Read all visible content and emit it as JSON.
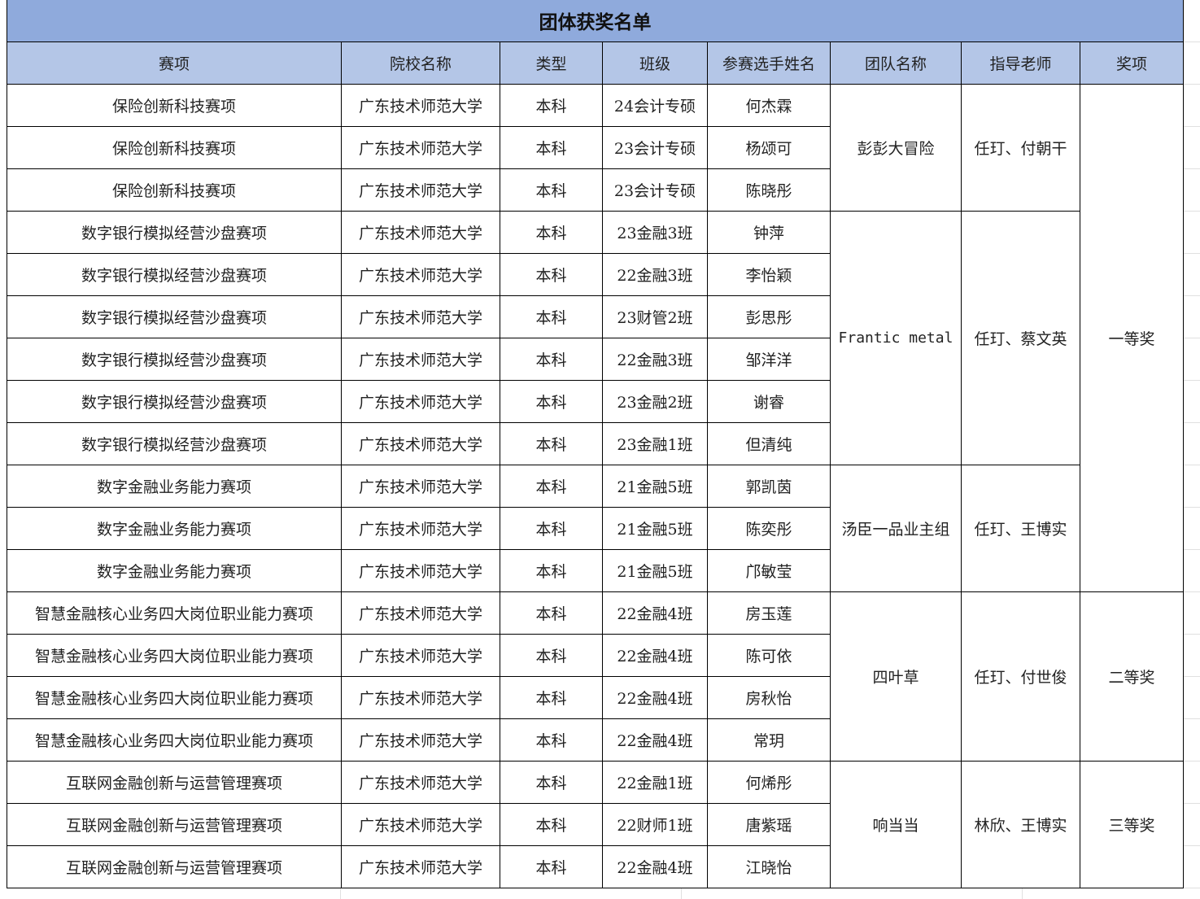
{
  "title": "团体获奖名单",
  "headers": [
    "赛项",
    "院校名称",
    "类型",
    "班级",
    "参赛选手姓名",
    "团队名称",
    "指导老师",
    "奖项"
  ],
  "rows": [
    {
      "event": "保险创新科技赛项",
      "school": "广东技术师范大学",
      "type": "本科",
      "class": "24会计专硕",
      "name": "何杰霖"
    },
    {
      "event": "保险创新科技赛项",
      "school": "广东技术师范大学",
      "type": "本科",
      "class": "23会计专硕",
      "name": "杨颂可"
    },
    {
      "event": "保险创新科技赛项",
      "school": "广东技术师范大学",
      "type": "本科",
      "class": "23会计专硕",
      "name": "陈晓彤"
    },
    {
      "event": "数字银行模拟经营沙盘赛项",
      "school": "广东技术师范大学",
      "type": "本科",
      "class": "23金融3班",
      "name": "钟萍"
    },
    {
      "event": "数字银行模拟经营沙盘赛项",
      "school": "广东技术师范大学",
      "type": "本科",
      "class": "22金融3班",
      "name": "李怡颖"
    },
    {
      "event": "数字银行模拟经营沙盘赛项",
      "school": "广东技术师范大学",
      "type": "本科",
      "class": "23财管2班",
      "name": "彭思彤"
    },
    {
      "event": "数字银行模拟经营沙盘赛项",
      "school": "广东技术师范大学",
      "type": "本科",
      "class": "22金融3班",
      "name": "邹洋洋"
    },
    {
      "event": "数字银行模拟经营沙盘赛项",
      "school": "广东技术师范大学",
      "type": "本科",
      "class": "23金融2班",
      "name": "谢睿"
    },
    {
      "event": "数字银行模拟经营沙盘赛项",
      "school": "广东技术师范大学",
      "type": "本科",
      "class": "23金融1班",
      "name": "但清纯"
    },
    {
      "event": "数字金融业务能力赛项",
      "school": "广东技术师范大学",
      "type": "本科",
      "class": "21金融5班",
      "name": "郭凯茵"
    },
    {
      "event": "数字金融业务能力赛项",
      "school": "广东技术师范大学",
      "type": "本科",
      "class": "21金融5班",
      "name": "陈奕彤"
    },
    {
      "event": "数字金融业务能力赛项",
      "school": "广东技术师范大学",
      "type": "本科",
      "class": "21金融5班",
      "name": "邝敏莹"
    },
    {
      "event": "智慧金融核心业务四大岗位职业能力赛项",
      "school": "广东技术师范大学",
      "type": "本科",
      "class": "22金融4班",
      "name": "房玉莲"
    },
    {
      "event": "智慧金融核心业务四大岗位职业能力赛项",
      "school": "广东技术师范大学",
      "type": "本科",
      "class": "22金融4班",
      "name": "陈可依"
    },
    {
      "event": "智慧金融核心业务四大岗位职业能力赛项",
      "school": "广东技术师范大学",
      "type": "本科",
      "class": "22金融4班",
      "name": "房秋怡"
    },
    {
      "event": "智慧金融核心业务四大岗位职业能力赛项",
      "school": "广东技术师范大学",
      "type": "本科",
      "class": "22金融4班",
      "name": "常玥"
    },
    {
      "event": "互联网金融创新与运营管理赛项",
      "school": "广东技术师范大学",
      "type": "本科",
      "class": "22金融1班",
      "name": "何烯彤"
    },
    {
      "event": "互联网金融创新与运营管理赛项",
      "school": "广东技术师范大学",
      "type": "本科",
      "class": "22财师1班",
      "name": "唐紫瑶"
    },
    {
      "event": "互联网金融创新与运营管理赛项",
      "school": "广东技术师范大学",
      "type": "本科",
      "class": "22金融4班",
      "name": "江晓怡"
    }
  ],
  "teams": [
    {
      "team": "彭彭大冒险",
      "teacher": "任玎、付朝干",
      "span": 3
    },
    {
      "team": "Frantic metal",
      "teacher": "任玎、蔡文英",
      "span": 6
    },
    {
      "team": "汤臣一品业主组",
      "teacher": "任玎、王博实",
      "span": 3
    },
    {
      "team": "四叶草",
      "teacher": "任玎、付世俊",
      "span": 4
    },
    {
      "team": "响当当",
      "teacher": "林欣、王博实",
      "span": 3
    }
  ],
  "awards": [
    {
      "award": "一等奖",
      "span": 12
    },
    {
      "award": "二等奖",
      "span": 4
    },
    {
      "award": "三等奖",
      "span": 3
    }
  ]
}
